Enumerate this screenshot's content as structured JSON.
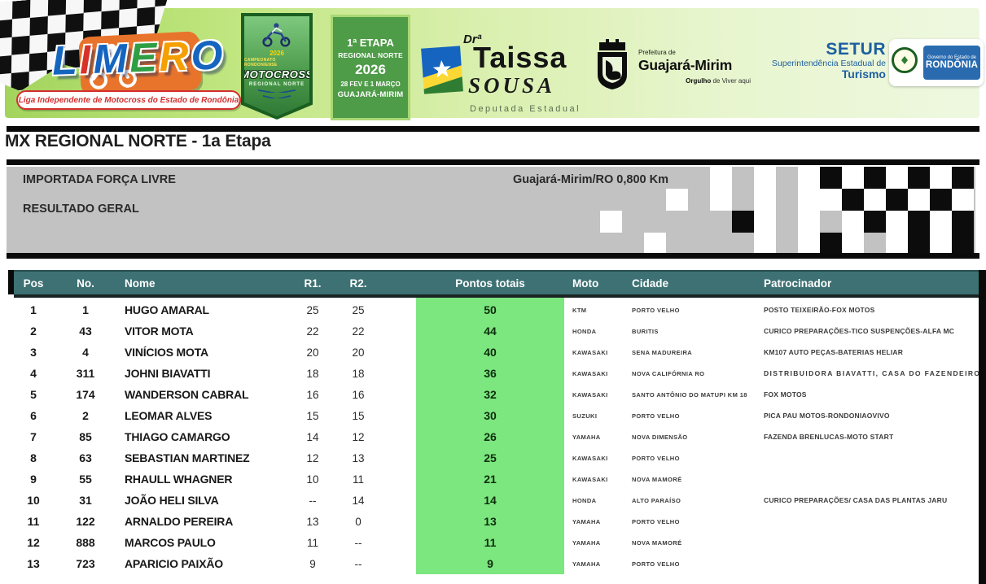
{
  "header": {
    "limero": {
      "letters": [
        {
          "ch": "L",
          "color": "#1565c0"
        },
        {
          "ch": "I",
          "color": "#d63229"
        },
        {
          "ch": "M",
          "color": "#1565c0"
        },
        {
          "ch": "E",
          "color": "#2f9e44"
        },
        {
          "ch": "R",
          "color": "#f59f00"
        },
        {
          "ch": "O",
          "color": "#1565c0"
        }
      ],
      "tagline": "Liga Independente de Motocross do Estado de Rondônia"
    },
    "badge": {
      "year": "2026",
      "league": "CAMPEONATO RONDONIENSE",
      "title": "MOTOCROSS",
      "subtitle": "REGIONAL NORTE"
    },
    "etapa": {
      "line1": "1ª ETAPA",
      "line2": "REGIONAL NORTE",
      "line3": "2026",
      "line4": "28 FEV E 1 MARÇO",
      "line5": "GUAJARÁ-MIRIM"
    },
    "taissa": {
      "prefix": "Drª",
      "first": "Taissa",
      "last": "SOUSA",
      "role": "Deputada Estadual"
    },
    "prefeitura": {
      "small": "Prefeitura de",
      "name": "Guajará-Mirim",
      "slogan_bold": "Orgulho",
      "slogan_rest": " de Viver aqui"
    },
    "setur": {
      "acronym": "SETUR",
      "line2": "Superintendência Estadual de",
      "line3": "Turismo"
    },
    "governo": {
      "small": "Governo do Estado de",
      "name": "RONDÔNIA"
    }
  },
  "page_title": "MX REGIONAL NORTE - 1a Etapa",
  "info_bar": {
    "category": "IMPORTADA FORÇA LIVRE",
    "result_type": "RESULTADO GERAL",
    "track": "Guajará-Mirim/RO 0,800 Km",
    "checker_pattern": [
      "GGGGGWGWGWBWBWBWB",
      "GGGWGWGWGWWBWBWBW",
      "WGGGGGBWGWGWBWBWB",
      "GGWGGGGWGWBWGWBWB"
    ]
  },
  "table": {
    "columns": [
      "Pos",
      "No.",
      "Nome",
      "R1.",
      "R2.",
      "Pontos totais",
      "Moto",
      "Cidade",
      "Patrocinador"
    ],
    "rows": [
      {
        "pos": "1",
        "no": "1",
        "nome": "HUGO AMARAL",
        "r1": "25",
        "r2": "25",
        "pontos": "50",
        "moto": "KTM",
        "cidade": "PORTO VELHO",
        "patrocinador": "POSTO TEIXEIRÃO-FOX MOTOS"
      },
      {
        "pos": "2",
        "no": "43",
        "nome": "VITOR MOTA",
        "r1": "22",
        "r2": "22",
        "pontos": "44",
        "moto": "HONDA",
        "cidade": "BURITIS",
        "patrocinador": "CURICO PREPARAÇÕES-TICO SUSPENÇÕES-ALFA MC"
      },
      {
        "pos": "3",
        "no": "4",
        "nome": "VINÍCIOS MOTA",
        "r1": "20",
        "r2": "20",
        "pontos": "40",
        "moto": "KAWASAKI",
        "cidade": "SENA MADUREIRA",
        "patrocinador": "KM107 AUTO PEÇAS-BATERIAS HELIAR"
      },
      {
        "pos": "4",
        "no": "311",
        "nome": "JOHNI BIAVATTI",
        "r1": "18",
        "r2": "18",
        "pontos": "36",
        "moto": "KAWASAKI",
        "cidade": "NOVA CALIFÓRNIA RO",
        "patrocinador": "DISTRIBUIDORA BIAVATTI, CASA DO FAZENDEIRO,"
      },
      {
        "pos": "5",
        "no": "174",
        "nome": "WANDERSON CABRAL",
        "r1": "16",
        "r2": "16",
        "pontos": "32",
        "moto": "KAWASAKI",
        "cidade": "SANTO ANTÔNIO DO MATUPI KM 18",
        "patrocinador": "FOX MOTOS"
      },
      {
        "pos": "6",
        "no": "2",
        "nome": "LEOMAR ALVES",
        "r1": "15",
        "r2": "15",
        "pontos": "30",
        "moto": "SUZUKI",
        "cidade": "PORTO VELHO",
        "patrocinador": "PICA PAU MOTOS-RONDONIAOVIVO"
      },
      {
        "pos": "7",
        "no": "85",
        "nome": "THIAGO CAMARGO",
        "r1": "14",
        "r2": "12",
        "pontos": "26",
        "moto": "YAMAHA",
        "cidade": "NOVA DIMENSÃO",
        "patrocinador": "FAZENDA BRENLUCAS-MOTO START"
      },
      {
        "pos": "8",
        "no": "63",
        "nome": "SEBASTIAN MARTINEZ",
        "r1": "12",
        "r2": "13",
        "pontos": "25",
        "moto": "KAWASAKI",
        "cidade": "PORTO VELHO",
        "patrocinador": ""
      },
      {
        "pos": "9",
        "no": "55",
        "nome": "RHAULL WHAGNER",
        "r1": "10",
        "r2": "11",
        "pontos": "21",
        "moto": "KAWASAKI",
        "cidade": "NOVA MAMORÉ",
        "patrocinador": ""
      },
      {
        "pos": "10",
        "no": "31",
        "nome": "JOÃO HELI SILVA",
        "r1": "--",
        "r2": "14",
        "pontos": "14",
        "moto": "HONDA",
        "cidade": "ALTO PARAÍSO",
        "patrocinador": "CURICO PREPARAÇÕES/ CASA DAS PLANTAS JARU"
      },
      {
        "pos": "11",
        "no": "122",
        "nome": "ARNALDO PEREIRA",
        "r1": "13",
        "r2": "0",
        "pontos": "13",
        "moto": "YAMAHA",
        "cidade": "PORTO VELHO",
        "patrocinador": ""
      },
      {
        "pos": "12",
        "no": "888",
        "nome": "MARCOS PAULO",
        "r1": "11",
        "r2": "--",
        "pontos": "11",
        "moto": "YAMAHA",
        "cidade": "NOVA MAMORÉ",
        "patrocinador": ""
      },
      {
        "pos": "13",
        "no": "723",
        "nome": "APARICIO PAIXÃO",
        "r1": "9",
        "r2": "--",
        "pontos": "9",
        "moto": "YAMAHA",
        "cidade": "PORTO VELHO",
        "patrocinador": ""
      }
    ]
  },
  "colors": {
    "table_header_teal": "#3e7173",
    "points_green": "#7ce67f",
    "info_bar_gray": "#c2c2c2",
    "rule_black": "#0a0a0a",
    "etapa_green": "#4e9b48",
    "setur_blue": "#1d5fa0",
    "governo_blue": "#2a6bb0",
    "band_green": "#a2d45c"
  }
}
